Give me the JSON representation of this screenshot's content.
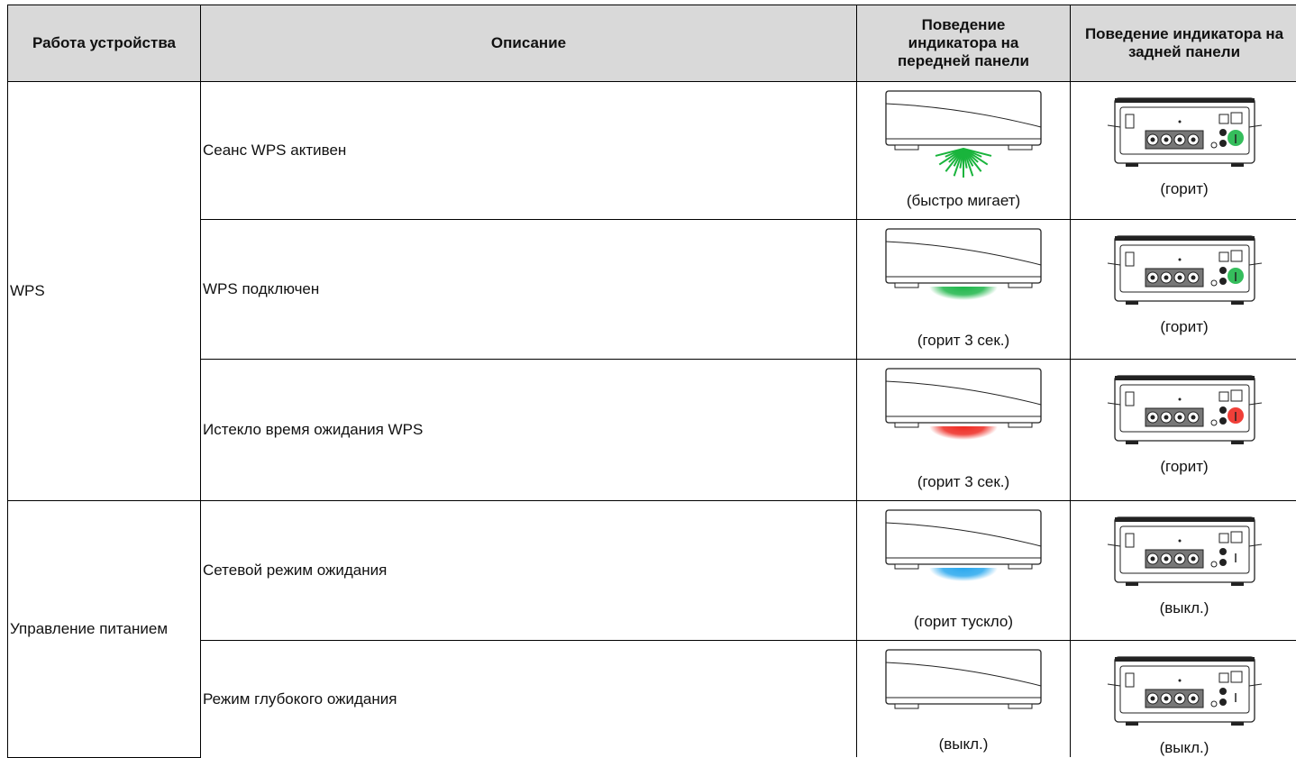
{
  "table": {
    "header": [
      "Работа устройства",
      "Описание",
      "Поведение индикатора на передней панели",
      "Поведение индикатора на задней панели"
    ],
    "groups": [
      {
        "label": "WPS",
        "rows": [
          {
            "description": "Сеанс WPS активен",
            "front": "(быстро мигает)",
            "rear": "(горит)"
          },
          {
            "description": "WPS подключен",
            "front": "(горит 3 сек.)",
            "rear": "(горит)"
          },
          {
            "description": "Истекло время ожидания WPS",
            "front": "(горит 3 сек.)",
            "rear": "(горит)"
          }
        ]
      },
      {
        "label": "Управление питанием",
        "rows": [
          {
            "description": "Сетевой режим ожидания",
            "front": "(горит тускло)",
            "rear": "(выкл.)"
          },
          {
            "description": "Режим глубокого ожидания",
            "front": "(выкл.)",
            "rear": "(выкл.)"
          }
        ]
      }
    ]
  }
}
